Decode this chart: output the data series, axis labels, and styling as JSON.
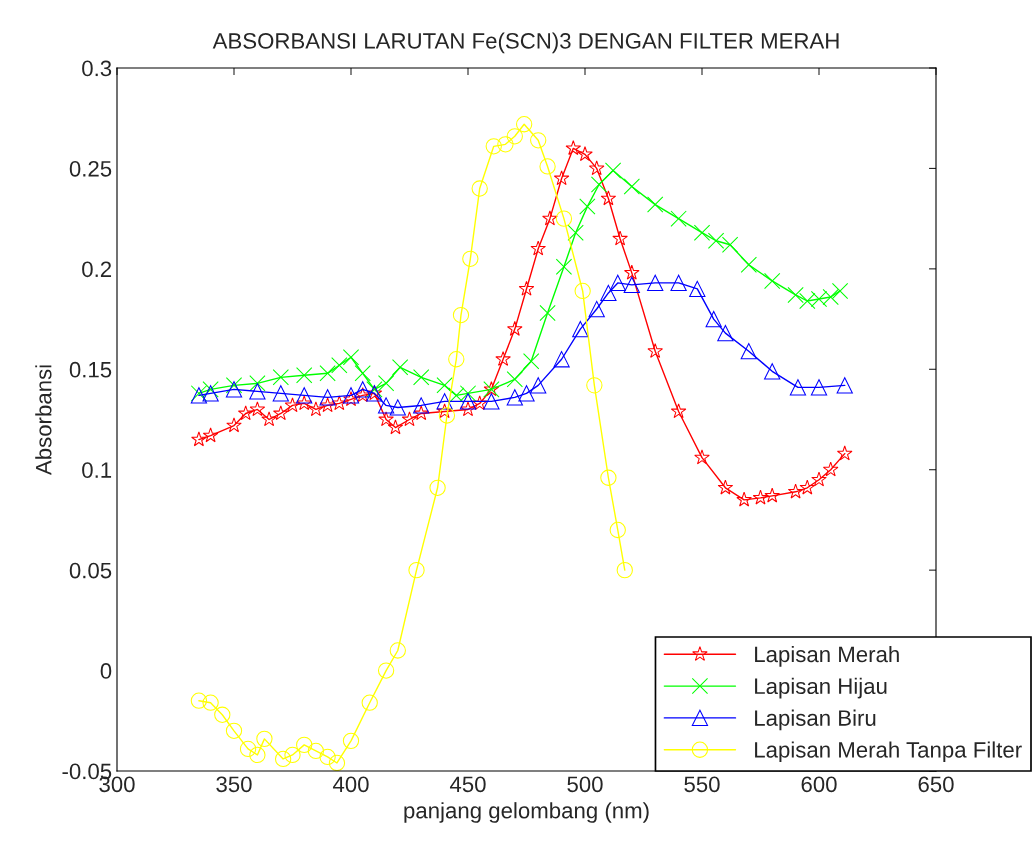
{
  "chart_data": {
    "type": "line",
    "title": "ABSORBANSI LARUTAN Fe(SCN)3 DENGAN FILTER MERAH",
    "xlabel": "panjang gelombang (nm)",
    "ylabel": "Absorbansi",
    "xlim": [
      300,
      650
    ],
    "xticks": [
      300,
      350,
      400,
      450,
      500,
      550,
      600,
      650
    ],
    "ylim": [
      -0.05,
      0.3
    ],
    "yticks": [
      -0.05,
      0,
      0.05,
      0.1,
      0.15,
      0.2,
      0.25,
      0.3
    ],
    "grid": false,
    "legend": "bottom right",
    "series": [
      {
        "name": "Lapisan Merah",
        "color": "#ff0000",
        "marker": "star",
        "x": [
          335,
          340,
          350,
          355,
          360,
          365,
          370,
          375,
          380,
          385,
          390,
          395,
          400,
          405,
          410,
          415,
          419,
          425,
          430,
          440,
          450,
          455,
          460,
          465,
          470,
          475,
          480,
          485,
          490,
          495,
          500,
          505,
          510,
          515,
          520,
          530,
          540,
          550,
          560,
          568,
          575,
          580,
          590,
          595,
          600,
          605,
          611
        ],
        "values": [
          0.115,
          0.117,
          0.122,
          0.128,
          0.13,
          0.125,
          0.128,
          0.132,
          0.133,
          0.13,
          0.132,
          0.133,
          0.135,
          0.137,
          0.138,
          0.125,
          0.121,
          0.125,
          0.128,
          0.129,
          0.13,
          0.133,
          0.14,
          0.155,
          0.17,
          0.19,
          0.21,
          0.225,
          0.245,
          0.26,
          0.257,
          0.25,
          0.235,
          0.215,
          0.198,
          0.159,
          0.129,
          0.106,
          0.091,
          0.085,
          0.086,
          0.087,
          0.089,
          0.091,
          0.095,
          0.1,
          0.108
        ]
      },
      {
        "name": "Lapisan Hijau",
        "color": "#00ff00",
        "marker": "cross",
        "x": [
          335,
          340,
          350,
          360,
          370,
          380,
          390,
          395,
          400,
          405,
          410,
          415,
          421,
          430,
          440,
          445,
          450,
          460,
          470,
          477,
          484,
          491,
          496,
          501,
          506,
          512,
          520,
          530,
          540,
          550,
          556,
          562,
          570,
          580,
          590,
          595,
          600,
          605,
          609
        ],
        "values": [
          0.138,
          0.14,
          0.142,
          0.143,
          0.146,
          0.147,
          0.148,
          0.152,
          0.156,
          0.148,
          0.14,
          0.143,
          0.151,
          0.146,
          0.142,
          0.137,
          0.138,
          0.14,
          0.145,
          0.154,
          0.178,
          0.201,
          0.218,
          0.231,
          0.242,
          0.249,
          0.241,
          0.232,
          0.225,
          0.218,
          0.214,
          0.212,
          0.202,
          0.194,
          0.187,
          0.184,
          0.185,
          0.186,
          0.189
        ]
      },
      {
        "name": "Lapisan Biru",
        "color": "#0000ff",
        "marker": "triangle",
        "x": [
          335,
          340,
          350,
          360,
          370,
          380,
          390,
          400,
          405,
          410,
          415,
          420,
          430,
          440,
          450,
          460,
          470,
          475,
          480,
          490,
          498,
          505,
          510,
          514,
          520,
          530,
          540,
          548,
          555,
          560,
          570,
          580,
          591,
          600,
          611
        ],
        "values": [
          0.137,
          0.138,
          0.14,
          0.139,
          0.138,
          0.137,
          0.136,
          0.137,
          0.14,
          0.138,
          0.132,
          0.131,
          0.132,
          0.134,
          0.134,
          0.134,
          0.136,
          0.138,
          0.142,
          0.155,
          0.17,
          0.18,
          0.188,
          0.193,
          0.192,
          0.193,
          0.193,
          0.19,
          0.175,
          0.168,
          0.159,
          0.149,
          0.141,
          0.141,
          0.142
        ]
      },
      {
        "name": "Lapisan Merah Tanpa Filter",
        "color": "#ffff00",
        "marker": "circle",
        "x": [
          335,
          340,
          345,
          350,
          356,
          360,
          363,
          371,
          375,
          380,
          385,
          390,
          394,
          400,
          408,
          415,
          420,
          428,
          437,
          441,
          445,
          447,
          451,
          455,
          461,
          466,
          470,
          474,
          480,
          484,
          491,
          499,
          504,
          510,
          514,
          517
        ],
        "values": [
          -0.015,
          -0.016,
          -0.022,
          -0.03,
          -0.039,
          -0.042,
          -0.034,
          -0.044,
          -0.042,
          -0.037,
          -0.04,
          -0.043,
          -0.046,
          -0.035,
          -0.016,
          0.0,
          0.01,
          0.05,
          0.091,
          0.127,
          0.155,
          0.177,
          0.205,
          0.24,
          0.261,
          0.262,
          0.266,
          0.272,
          0.264,
          0.251,
          0.225,
          0.189,
          0.142,
          0.096,
          0.07,
          0.05
        ]
      }
    ]
  }
}
